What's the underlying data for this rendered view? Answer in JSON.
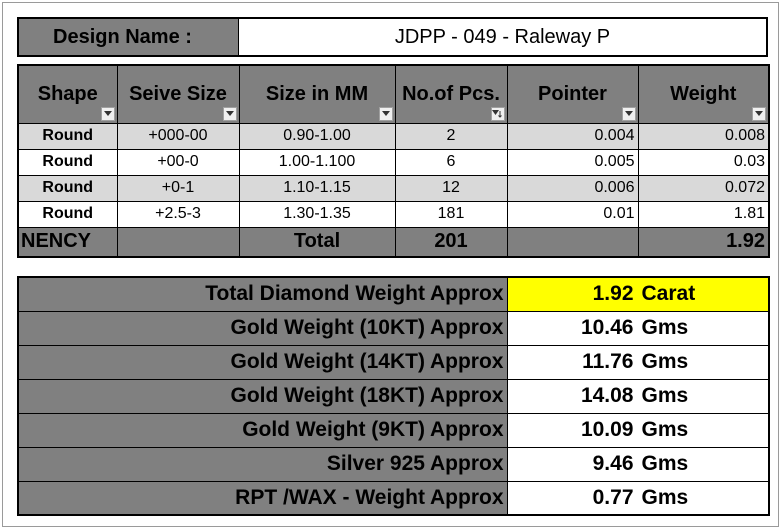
{
  "header": {
    "label": "Design Name :",
    "value": "JDPP - 049 - Raleway P"
  },
  "table": {
    "columns": [
      "Shape",
      "Seive Size",
      "Size in MM",
      "No.of Pcs.",
      "Pointer",
      "Weight"
    ],
    "rows": [
      [
        "Round",
        "+000-00",
        "0.90-1.00",
        "2",
        "0.004",
        "0.008"
      ],
      [
        "Round",
        "+00-0",
        "1.00-1.100",
        "6",
        "0.005",
        "0.03"
      ],
      [
        "Round",
        "+0-1",
        "1.10-1.15",
        "12",
        "0.006",
        "0.072"
      ],
      [
        "Round",
        "+2.5-3",
        "1.30-1.35",
        "181",
        "0.01",
        "1.81"
      ]
    ],
    "total": {
      "name": "NENCY",
      "label": "Total",
      "pcs": "201",
      "weight": "1.92"
    }
  },
  "summary": [
    {
      "label": "Total Diamond Weight Approx",
      "value": "1.92",
      "unit": "Carat"
    },
    {
      "label": "Gold Weight (10KT) Approx",
      "value": "10.46",
      "unit": "Gms"
    },
    {
      "label": "Gold Weight (14KT) Approx",
      "value": "11.76",
      "unit": "Gms"
    },
    {
      "label": "Gold Weight (18KT) Approx",
      "value": "14.08",
      "unit": "Gms"
    },
    {
      "label": "Gold Weight (9KT) Approx",
      "value": "10.09",
      "unit": "Gms"
    },
    {
      "label": "Silver 925 Approx",
      "value": "9.46",
      "unit": "Gms"
    },
    {
      "label": "RPT /WAX - Weight Approx",
      "value": "0.77",
      "unit": "Gms"
    }
  ],
  "colors": {
    "header_fill": "#808080",
    "row_shade": "#d9d9d9",
    "highlight": "#ffff00"
  },
  "icons": {
    "filter": "filter-dropdown-icon",
    "filter_active": "filter-active-icon"
  }
}
